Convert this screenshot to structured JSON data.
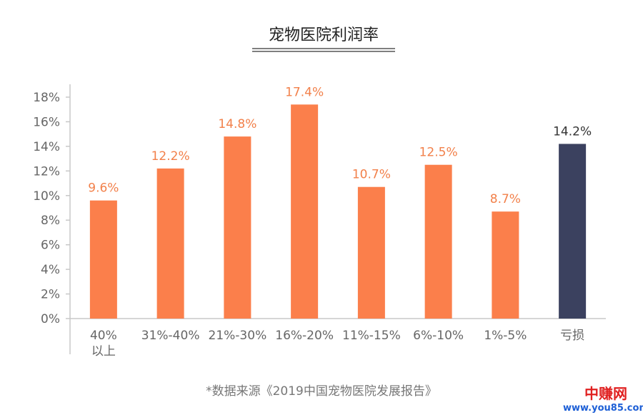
{
  "chart_data": {
    "type": "bar",
    "title": "宠物医院利润率",
    "categories": [
      "40%以上",
      "31%-40%",
      "21%-30%",
      "16%-20%",
      "11%-15%",
      "6%-10%",
      "1%-5%",
      "亏损"
    ],
    "category_lines": [
      [
        "40%",
        "以上"
      ],
      [
        "31%-40%"
      ],
      [
        "21%-30%"
      ],
      [
        "16%-20%"
      ],
      [
        "11%-15%"
      ],
      [
        "6%-10%"
      ],
      [
        "1%-5%"
      ],
      [
        "亏损"
      ]
    ],
    "values": [
      9.6,
      12.2,
      14.8,
      17.4,
      10.7,
      12.5,
      8.7,
      14.2
    ],
    "value_labels": [
      "9.6%",
      "12.2%",
      "14.8%",
      "17.4%",
      "10.7%",
      "12.5%",
      "8.7%",
      "14.2%"
    ],
    "ylim": [
      0,
      18
    ],
    "yticks": [
      "0%",
      "2%",
      "4%",
      "6%",
      "8%",
      "10%",
      "12%",
      "14%",
      "16%",
      "18%"
    ],
    "grid": false,
    "colors": {
      "bar": "#fb7f4b",
      "highlight": "#3b415f",
      "highlight_index": 7
    },
    "xlabel": "",
    "ylabel": ""
  },
  "source_note": "*数据来源《2019中国宠物医院发展报告》",
  "watermark": {
    "line1": "中赚网",
    "line2": "www.you85.com"
  }
}
